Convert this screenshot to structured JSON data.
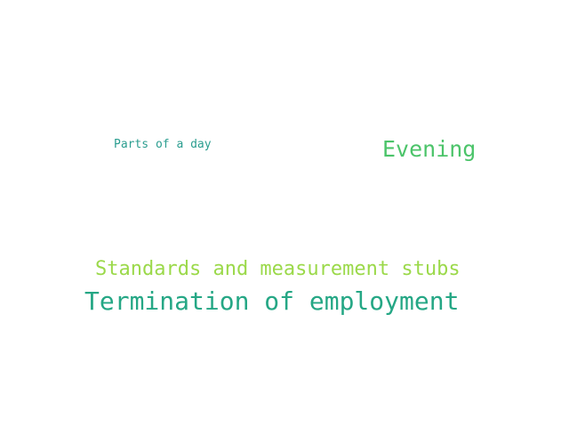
{
  "words": [
    {
      "text": "Parts of a day",
      "color": "#2a9d8f"
    },
    {
      "text": "Evening",
      "color": "#4cc46a"
    },
    {
      "text": "Standards and measurement stubs",
      "color": "#9bd94a"
    },
    {
      "text": "Termination of employment",
      "color": "#25a785"
    }
  ]
}
